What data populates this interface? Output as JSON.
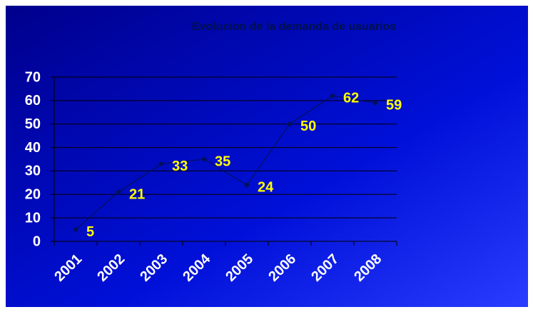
{
  "chart_data": {
    "type": "line",
    "title": "Evolucion de la demanda de usuarios",
    "categories": [
      "2001",
      "2002",
      "2003",
      "2004",
      "2005",
      "2006",
      "2007",
      "2008"
    ],
    "values": [
      5,
      21,
      33,
      35,
      24,
      50,
      62,
      59
    ],
    "color": "#00105a",
    "ylim": [
      0,
      70
    ],
    "yticks": [
      0,
      10,
      20,
      30,
      40,
      50,
      60,
      70
    ],
    "grid": true
  }
}
